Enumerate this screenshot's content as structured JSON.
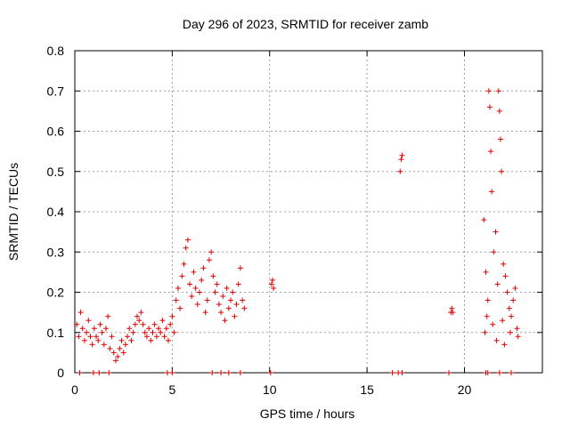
{
  "chart_data": {
    "type": "scatter",
    "title": "Day 296 of 2023, SRMTID for receiver zamb",
    "xlabel": "GPS time / hours",
    "ylabel": "SRMTID / TECUs",
    "xlim": [
      0,
      24
    ],
    "ylim": [
      0,
      0.8
    ],
    "xticks": [
      "0",
      "5",
      "10",
      "15",
      "20"
    ],
    "yticks": [
      "0",
      "0.1",
      "0.2",
      "0.3",
      "0.4",
      "0.5",
      "0.6",
      "0.7",
      "0.8"
    ],
    "grid": true,
    "marker": "+",
    "color": "#dd0000",
    "series": [
      {
        "name": "SRMTID",
        "points": [
          [
            0.1,
            0.12
          ],
          [
            0.2,
            0.09
          ],
          [
            0.3,
            0.15
          ],
          [
            0.4,
            0.11
          ],
          [
            0.5,
            0.08
          ],
          [
            0.6,
            0.1
          ],
          [
            0.7,
            0.13
          ],
          [
            0.8,
            0.09
          ],
          [
            0.9,
            0.07
          ],
          [
            1.0,
            0.11
          ],
          [
            1.1,
            0.09
          ],
          [
            1.2,
            0.08
          ],
          [
            1.3,
            0.12
          ],
          [
            1.4,
            0.1
          ],
          [
            1.5,
            0.07
          ],
          [
            1.6,
            0.11
          ],
          [
            1.7,
            0.14
          ],
          [
            1.8,
            0.06
          ],
          [
            1.9,
            0.09
          ],
          [
            2.0,
            0.05
          ],
          [
            2.1,
            0.03
          ],
          [
            2.2,
            0.04
          ],
          [
            2.3,
            0.06
          ],
          [
            2.4,
            0.08
          ],
          [
            2.5,
            0.05
          ],
          [
            2.6,
            0.07
          ],
          [
            2.7,
            0.09
          ],
          [
            2.8,
            0.11
          ],
          [
            2.9,
            0.08
          ],
          [
            3.0,
            0.1
          ],
          [
            3.1,
            0.12
          ],
          [
            3.2,
            0.14
          ],
          [
            3.3,
            0.13
          ],
          [
            3.4,
            0.15
          ],
          [
            3.5,
            0.12
          ],
          [
            3.6,
            0.1
          ],
          [
            3.7,
            0.09
          ],
          [
            3.8,
            0.11
          ],
          [
            3.9,
            0.08
          ],
          [
            4.0,
            0.1
          ],
          [
            4.1,
            0.12
          ],
          [
            4.2,
            0.09
          ],
          [
            4.3,
            0.11
          ],
          [
            4.4,
            0.1
          ],
          [
            4.5,
            0.13
          ],
          [
            4.6,
            0.09
          ],
          [
            4.7,
            0.11
          ],
          [
            4.8,
            0.08
          ],
          [
            4.9,
            0.12
          ],
          [
            5.0,
            0.14
          ],
          [
            5.1,
            0.1
          ],
          [
            5.2,
            0.18
          ],
          [
            5.3,
            0.21
          ],
          [
            5.4,
            0.16
          ],
          [
            5.5,
            0.24
          ],
          [
            5.6,
            0.27
          ],
          [
            5.7,
            0.31
          ],
          [
            5.8,
            0.33
          ],
          [
            5.9,
            0.22
          ],
          [
            6.0,
            0.19
          ],
          [
            6.1,
            0.25
          ],
          [
            6.2,
            0.21
          ],
          [
            6.3,
            0.17
          ],
          [
            6.4,
            0.2
          ],
          [
            6.5,
            0.23
          ],
          [
            6.6,
            0.26
          ],
          [
            6.7,
            0.15
          ],
          [
            6.8,
            0.18
          ],
          [
            6.9,
            0.28
          ],
          [
            7.0,
            0.3
          ],
          [
            7.1,
            0.24
          ],
          [
            7.2,
            0.2
          ],
          [
            7.3,
            0.22
          ],
          [
            7.4,
            0.17
          ],
          [
            7.5,
            0.15
          ],
          [
            7.6,
            0.19
          ],
          [
            7.7,
            0.13
          ],
          [
            7.8,
            0.21
          ],
          [
            7.9,
            0.16
          ],
          [
            8.0,
            0.18
          ],
          [
            8.1,
            0.2
          ],
          [
            8.2,
            0.14
          ],
          [
            8.3,
            0.17
          ],
          [
            8.4,
            0.22
          ],
          [
            8.5,
            0.26
          ],
          [
            8.6,
            0.18
          ],
          [
            8.7,
            0.16
          ],
          [
            10.1,
            0.22
          ],
          [
            10.15,
            0.23
          ],
          [
            10.2,
            0.21
          ],
          [
            16.7,
            0.5
          ],
          [
            16.75,
            0.53
          ],
          [
            16.8,
            0.54
          ],
          [
            19.3,
            0.15
          ],
          [
            19.35,
            0.16
          ],
          [
            19.4,
            0.15
          ],
          [
            21.0,
            0.38
          ],
          [
            21.1,
            0.25
          ],
          [
            21.2,
            0.18
          ],
          [
            21.25,
            0.7
          ],
          [
            21.3,
            0.66
          ],
          [
            21.35,
            0.55
          ],
          [
            21.4,
            0.45
          ],
          [
            21.5,
            0.3
          ],
          [
            21.6,
            0.35
          ],
          [
            21.7,
            0.22
          ],
          [
            21.75,
            0.7
          ],
          [
            21.8,
            0.65
          ],
          [
            21.85,
            0.58
          ],
          [
            21.9,
            0.5
          ],
          [
            22.0,
            0.27
          ],
          [
            22.1,
            0.24
          ],
          [
            22.2,
            0.2
          ],
          [
            22.3,
            0.16
          ],
          [
            22.4,
            0.14
          ],
          [
            22.5,
            0.18
          ],
          [
            22.6,
            0.21
          ],
          [
            22.7,
            0.11
          ],
          [
            22.75,
            0.09
          ],
          [
            21.05,
            0.1
          ],
          [
            21.15,
            0.14
          ],
          [
            21.45,
            0.12
          ],
          [
            21.65,
            0.08
          ],
          [
            21.95,
            0.13
          ],
          [
            22.05,
            0.07
          ],
          [
            22.35,
            0.1
          ],
          [
            0.25,
            0
          ],
          [
            0.95,
            0
          ],
          [
            1.25,
            0
          ],
          [
            1.75,
            0
          ],
          [
            4.75,
            0
          ],
          [
            5.0,
            0
          ],
          [
            7.05,
            0
          ],
          [
            7.5,
            0
          ],
          [
            7.9,
            0
          ],
          [
            8.5,
            0
          ],
          [
            10.05,
            0
          ],
          [
            16.3,
            0
          ],
          [
            16.6,
            0
          ],
          [
            16.8,
            0
          ],
          [
            19.2,
            0
          ],
          [
            21.1,
            0
          ],
          [
            21.2,
            0
          ],
          [
            21.8,
            0
          ],
          [
            22.4,
            0
          ]
        ]
      }
    ]
  }
}
